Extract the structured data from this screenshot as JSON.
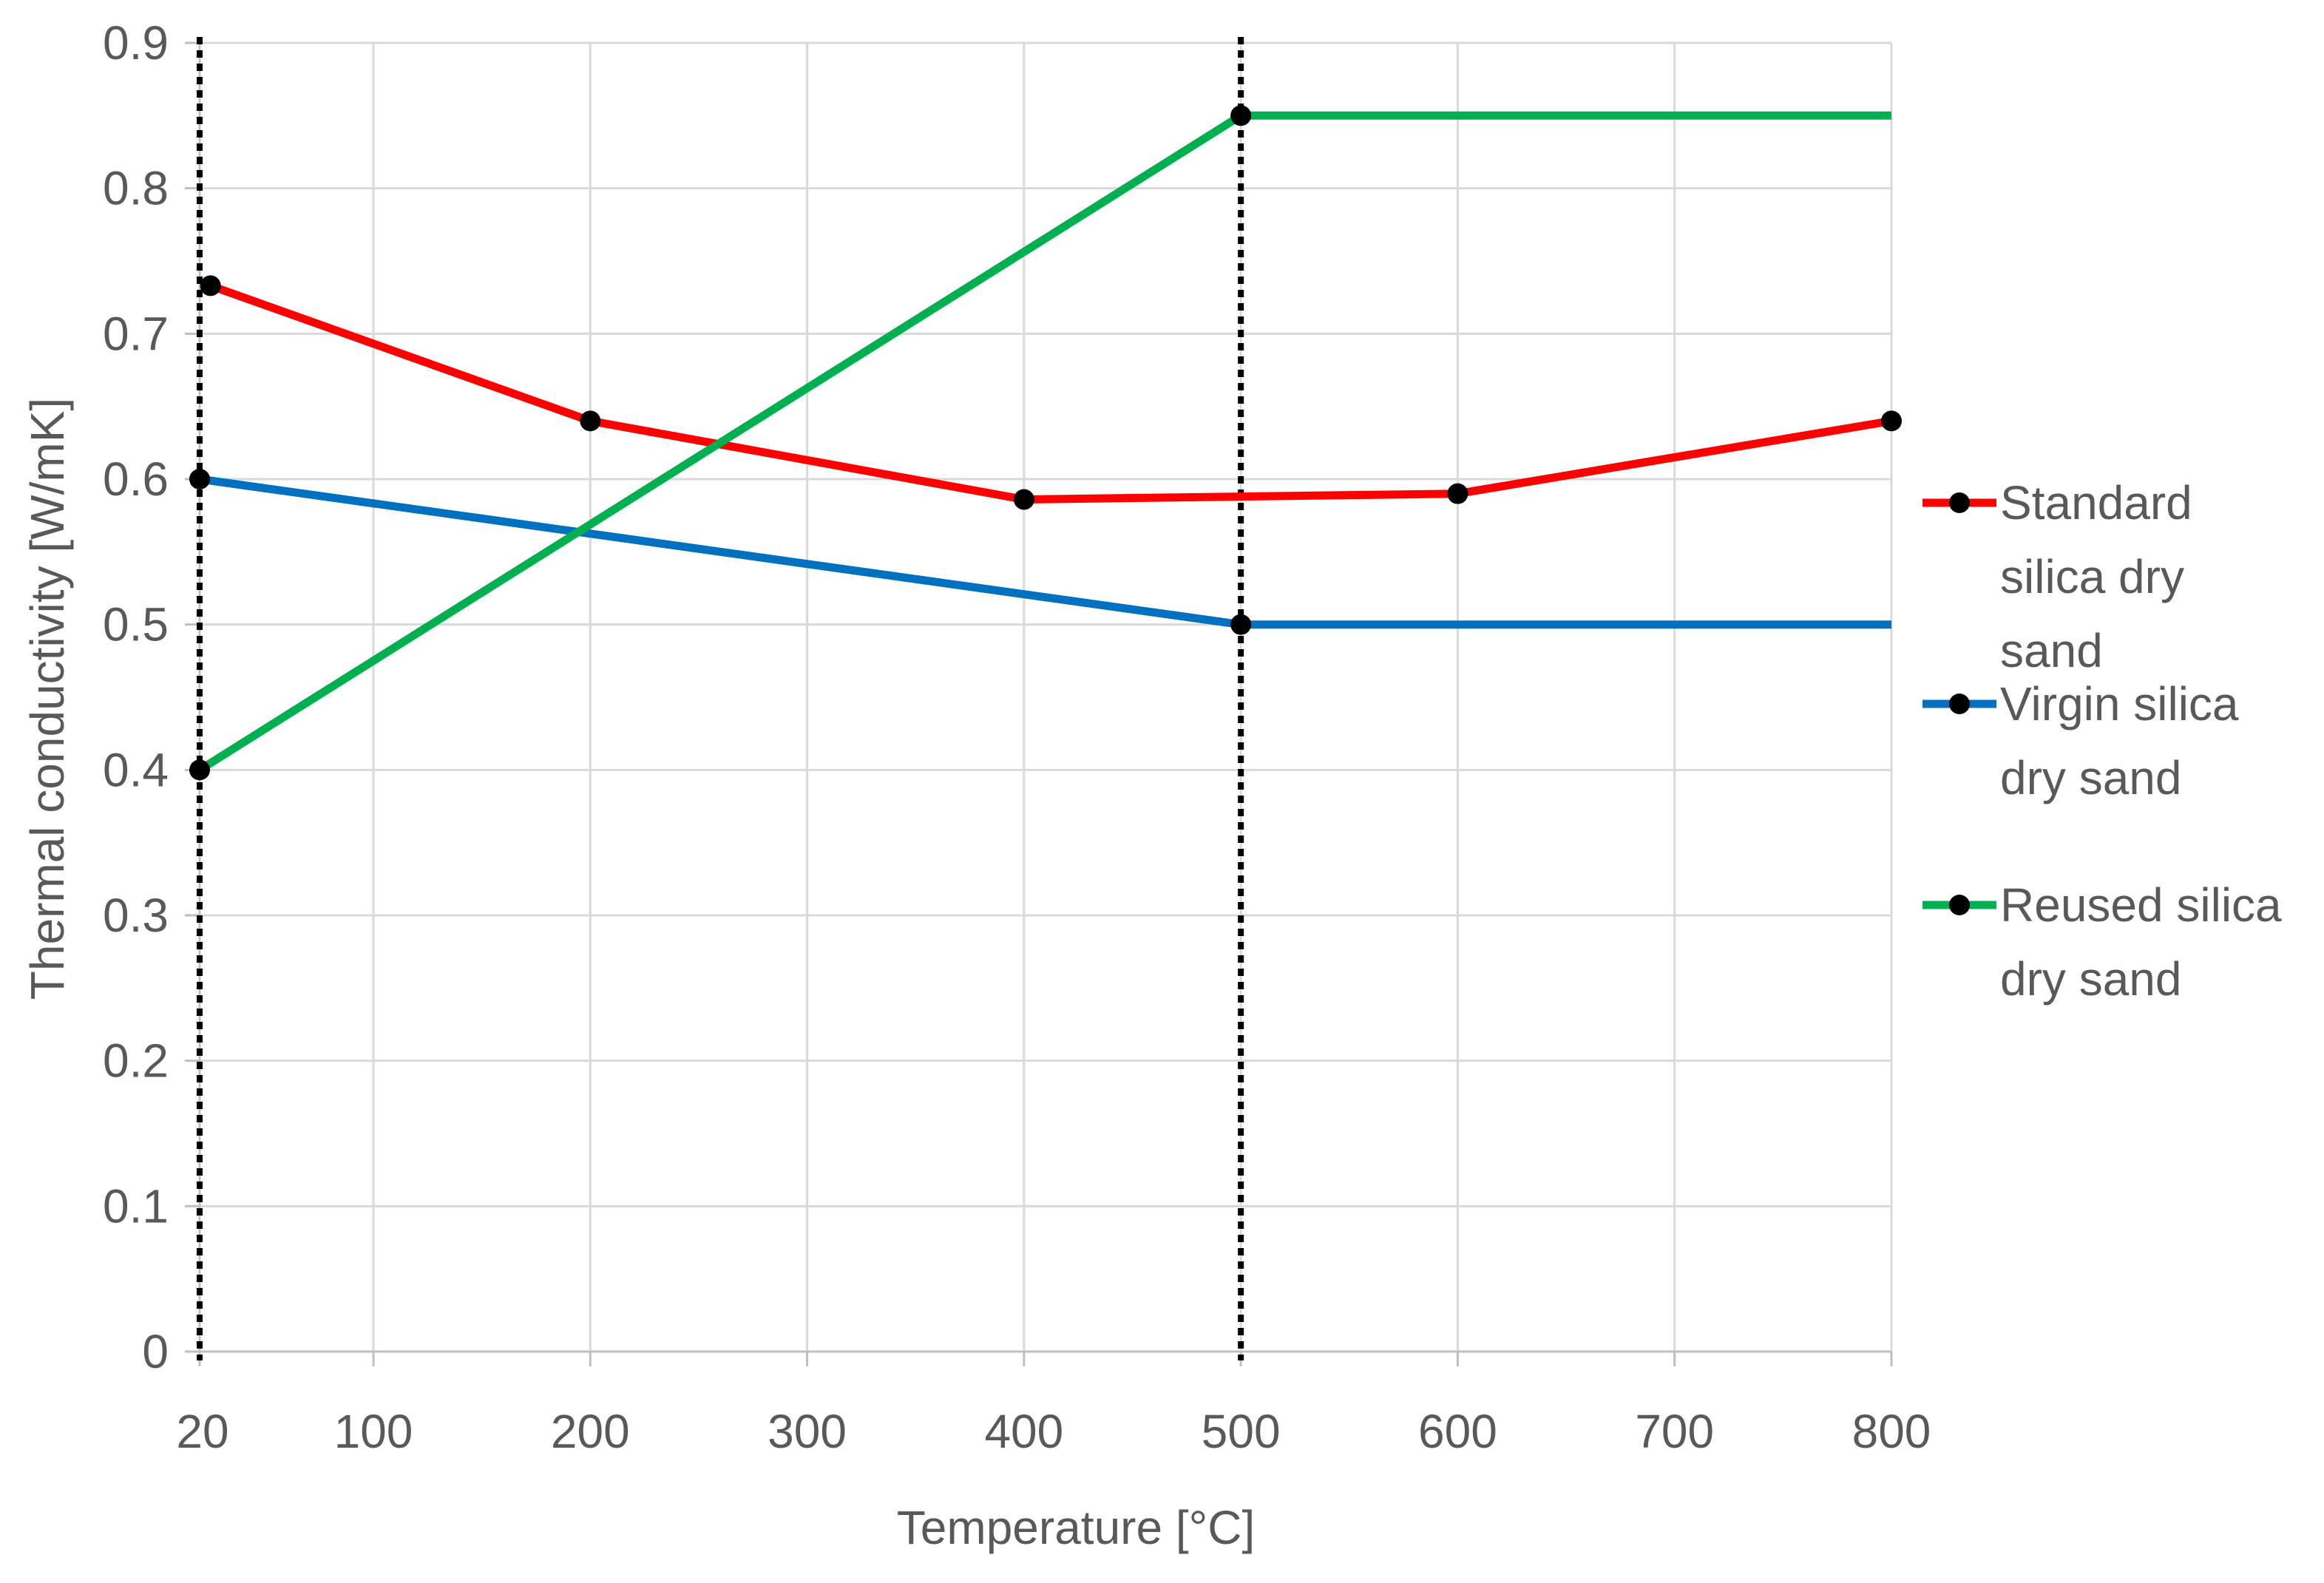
{
  "chart_data": {
    "type": "line",
    "title": "",
    "xlabel": "Temperature [°C]",
    "ylabel": "Thermal conductivity [W/mK]",
    "xlim": [
      20,
      800
    ],
    "ylim": [
      0,
      0.9
    ],
    "grid": true,
    "x_ticks": [
      20,
      100,
      200,
      300,
      400,
      500,
      600,
      700,
      800
    ],
    "x_tick_labels": [
      "20",
      "100",
      "200",
      "300",
      "400",
      "500",
      "600",
      "700",
      "800"
    ],
    "y_ticks": [
      0,
      0.1,
      0.2,
      0.3,
      0.4,
      0.5,
      0.6,
      0.7,
      0.8,
      0.9
    ],
    "y_tick_labels": [
      "0",
      "0.1",
      "0.2",
      "0.3",
      "0.4",
      "0.5",
      "0.6",
      "0.7",
      "0.8",
      "0.9"
    ],
    "reference_lines_x": [
      20,
      500
    ],
    "legend_position": "right",
    "series": [
      {
        "name": "Standard silica dry sand",
        "legend_lines": [
          "Standard",
          "silica dry",
          "sand"
        ],
        "color": "#ff0000",
        "x": [
          25,
          200,
          400,
          600,
          800
        ],
        "y": [
          0.733,
          0.64,
          0.586,
          0.59,
          0.64
        ],
        "markers": [
          [
            25,
            0.733
          ],
          [
            200,
            0.64
          ],
          [
            400,
            0.586
          ],
          [
            600,
            0.59
          ],
          [
            800,
            0.64
          ]
        ]
      },
      {
        "name": "Virgin silica dry sand",
        "legend_lines": [
          "Virgin silica",
          "dry sand"
        ],
        "color": "#0070c0",
        "x": [
          20,
          500,
          800
        ],
        "y": [
          0.6,
          0.5,
          0.5
        ],
        "markers": [
          [
            20,
            0.6
          ],
          [
            500,
            0.5
          ]
        ]
      },
      {
        "name": "Reused silica dry sand",
        "legend_lines": [
          "Reused silica",
          "dry sand"
        ],
        "color": "#00b050",
        "x": [
          20,
          500,
          800
        ],
        "y": [
          0.4,
          0.85,
          0.85
        ],
        "markers": [
          [
            20,
            0.4
          ],
          [
            500,
            0.85
          ]
        ]
      }
    ]
  }
}
